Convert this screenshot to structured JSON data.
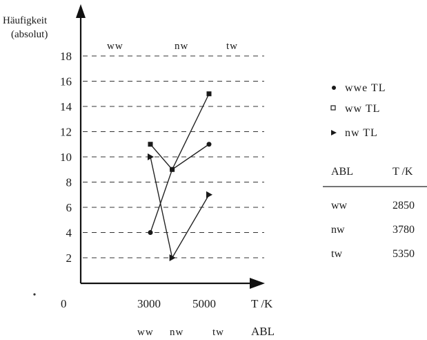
{
  "chart_data": {
    "type": "line",
    "ylabel_line1": "Häufigkeit",
    "ylabel_line2": "(absolut)",
    "x_axis_label": "T /K",
    "x_tick_labels": [
      "0",
      "3000",
      "5000"
    ],
    "x_tick_zero": "0",
    "x_tick_3000": "3000",
    "x_tick_5000": "5000",
    "x_secondary_labels": [
      "ww",
      "nw",
      "tw",
      "ABL"
    ],
    "x_secondary_ww": "ww",
    "x_secondary_nw": "nw",
    "x_secondary_tw": "tw",
    "x_secondary_abl": "ABL",
    "band_labels": [
      "ww",
      "nw",
      "tw"
    ],
    "band_ww": "ww",
    "band_nw": "nw",
    "band_tw": "tw",
    "y_ticks": [
      2,
      4,
      6,
      8,
      10,
      12,
      14,
      16,
      18
    ],
    "ylim": [
      0,
      19.5
    ],
    "xlim": [
      0,
      7000
    ],
    "grid": "horizontal-dashed",
    "legend_position": "right",
    "series": [
      {
        "name": "wwe TL",
        "marker": "circle",
        "x": [
          2850,
          3780,
          5350
        ],
        "y": [
          4,
          9,
          11
        ]
      },
      {
        "name": "ww TL",
        "marker": "square",
        "x": [
          2850,
          3780,
          5350
        ],
        "y": [
          11,
          9,
          15
        ]
      },
      {
        "name": "nw TL",
        "marker": "triangle",
        "x": [
          2850,
          3780,
          5350
        ],
        "y": [
          10,
          2,
          7
        ]
      }
    ]
  },
  "table": {
    "header_abl": "ABL",
    "header_t": "T /K",
    "rows": [
      {
        "abl": "ww",
        "t": "2850"
      },
      {
        "abl": "nw",
        "t": "3780"
      },
      {
        "abl": "tw",
        "t": "5350"
      }
    ]
  },
  "colors": {
    "ink": "#1a1a1a",
    "background": "#ffffff"
  }
}
